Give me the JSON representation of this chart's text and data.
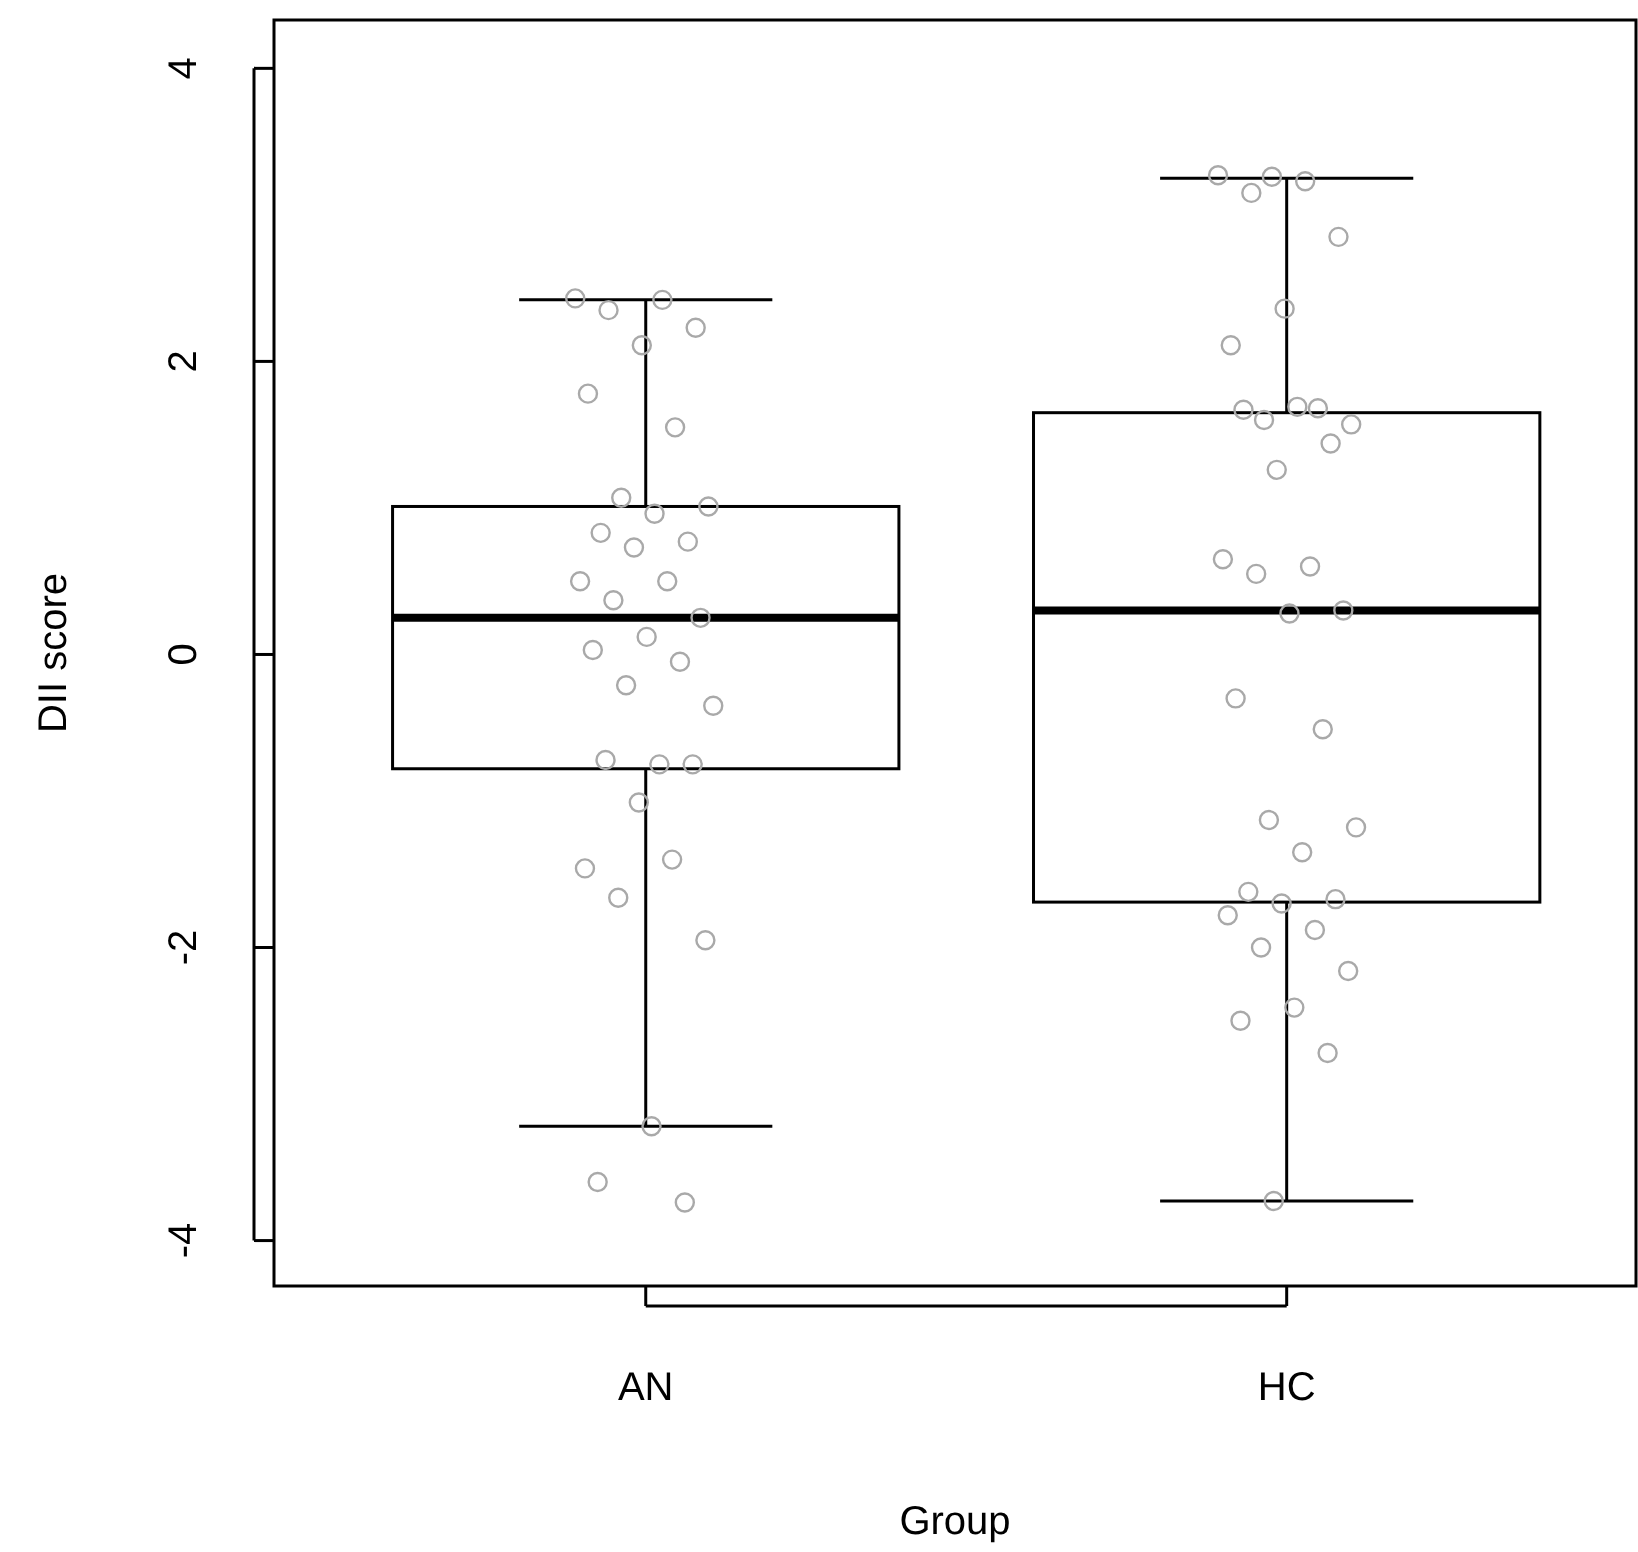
{
  "chart_data": {
    "type": "box",
    "xlabel": "Group",
    "ylabel": "DII score",
    "categories": [
      "AN",
      "HC"
    ],
    "ylim": [
      -4.31,
      4.33
    ],
    "yticks": [
      -4,
      -2,
      0,
      2,
      4
    ],
    "boxes": [
      {
        "low": -3.22,
        "q1": -0.78,
        "median": 0.25,
        "q3": 1.01,
        "high": 2.42
      },
      {
        "low": -3.73,
        "q1": -1.69,
        "median": 0.3,
        "q3": 1.65,
        "high": 3.25
      }
    ],
    "series": [
      {
        "type": "scatter",
        "color": "#a9a9a9",
        "marker": "circle",
        "x": [
          "AN",
          "AN",
          "AN",
          "AN",
          "AN",
          "AN",
          "AN",
          "AN",
          "AN",
          "AN",
          "AN",
          "AN",
          "AN",
          "AN",
          "AN",
          "AN",
          "AN",
          "AN",
          "AN",
          "AN",
          "AN",
          "AN",
          "AN",
          "AN",
          "AN",
          "AN",
          "AN",
          "AN",
          "AN",
          "AN",
          "AN",
          "AN",
          "AN",
          "HC",
          "HC",
          "HC",
          "HC",
          "HC",
          "HC",
          "HC",
          "HC",
          "HC",
          "HC",
          "HC",
          "HC",
          "HC",
          "HC",
          "HC",
          "HC",
          "HC",
          "HC",
          "HC",
          "HC",
          "HC",
          "HC",
          "HC",
          "HC",
          "HC",
          "HC",
          "HC",
          "HC",
          "HC",
          "HC",
          "HC",
          "HC",
          "HC",
          "HC",
          "HC"
        ],
        "values": [
          2.43,
          2.42,
          2.35,
          2.23,
          2.11,
          1.78,
          1.55,
          1.07,
          1.01,
          0.96,
          0.83,
          0.77,
          0.73,
          0.5,
          0.5,
          0.37,
          0.25,
          0.12,
          0.03,
          -0.05,
          -0.21,
          -0.35,
          -0.75,
          -0.72,
          -0.75,
          -1.01,
          -1.46,
          -1.4,
          -1.66,
          -1.95,
          -3.22,
          -3.6,
          -3.74,
          3.26,
          3.27,
          3.23,
          3.15,
          2.85,
          2.36,
          2.11,
          1.68,
          1.6,
          1.57,
          1.69,
          1.67,
          1.44,
          1.26,
          0.65,
          0.6,
          0.55,
          0.3,
          0.28,
          -0.3,
          -0.51,
          -1.13,
          -1.18,
          -1.35,
          -1.62,
          -1.67,
          -1.7,
          -1.78,
          -1.88,
          -2.0,
          -2.16,
          -2.41,
          -2.5,
          -2.72,
          -3.73
        ]
      }
    ]
  }
}
